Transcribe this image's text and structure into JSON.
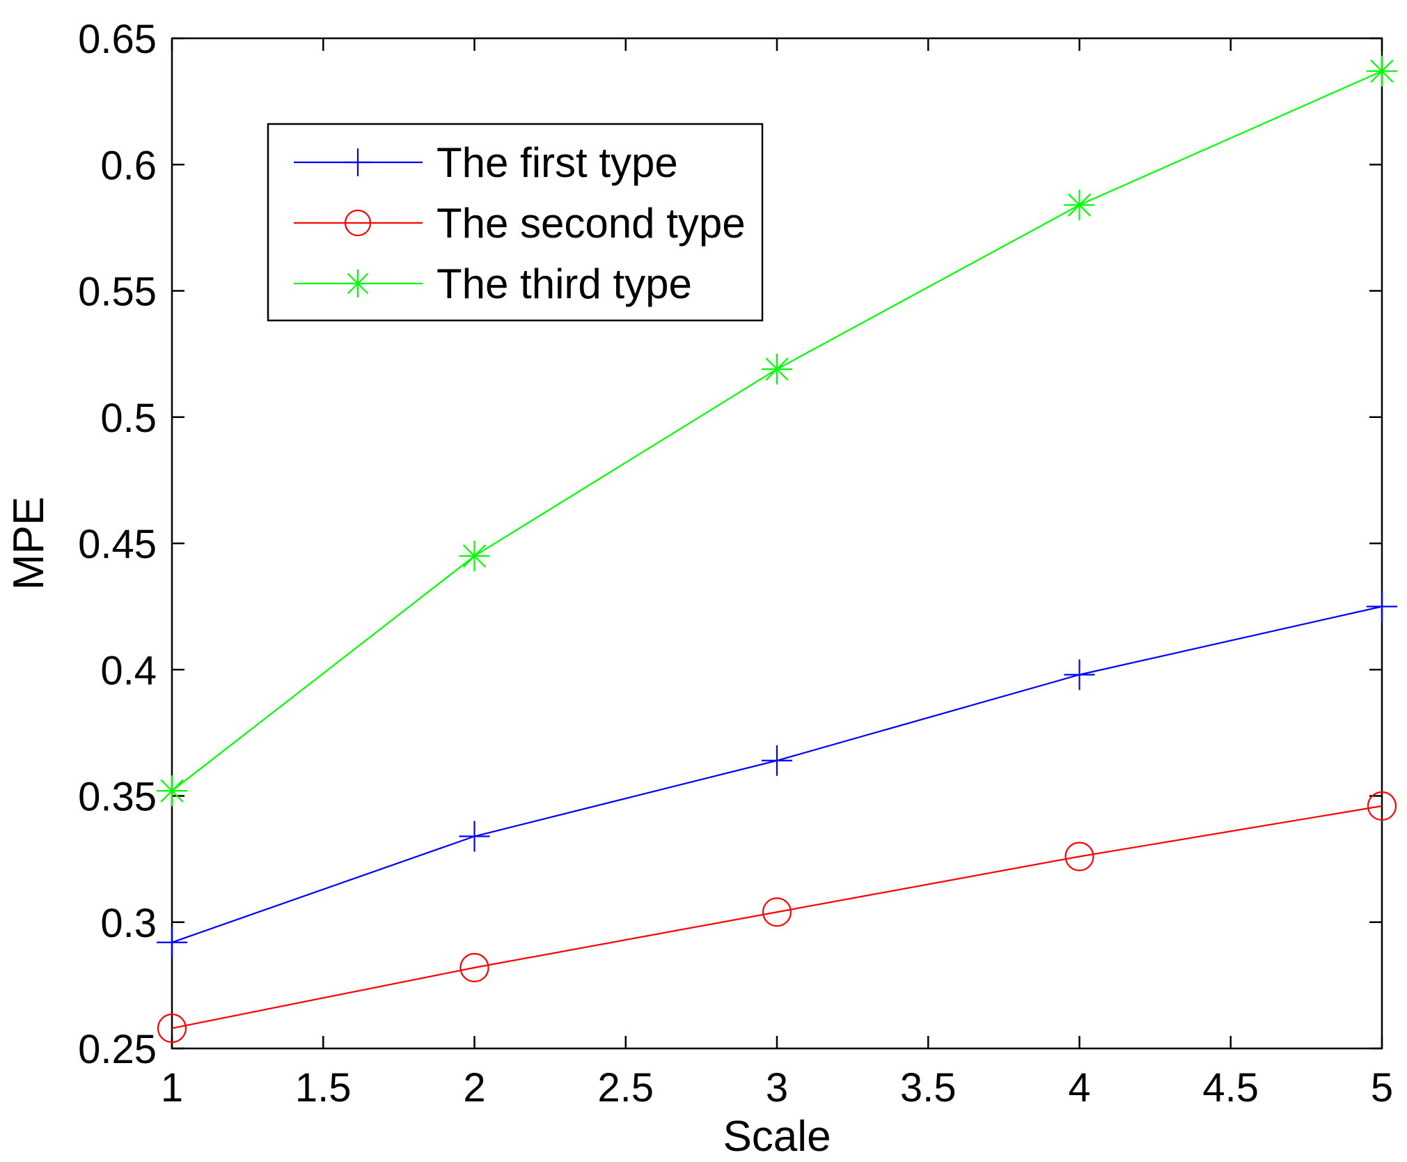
{
  "chart_data": {
    "type": "line",
    "title": "",
    "xlabel": "Scale",
    "ylabel": "MPE",
    "xlim": [
      1,
      5
    ],
    "ylim": [
      0.25,
      0.65
    ],
    "xticks": [
      1,
      1.5,
      2,
      2.5,
      3,
      3.5,
      4,
      4.5,
      5
    ],
    "xtick_labels": [
      "1",
      "1.5",
      "2",
      "2.5",
      "3",
      "3.5",
      "4",
      "4.5",
      "5"
    ],
    "yticks": [
      0.25,
      0.3,
      0.35,
      0.4,
      0.45,
      0.5,
      0.55,
      0.6,
      0.65
    ],
    "ytick_labels": [
      "0.25",
      "0.3",
      "0.35",
      "0.4",
      "0.45",
      "0.5",
      "0.55",
      "0.6",
      "0.65"
    ],
    "grid": false,
    "legend_position": "top-left",
    "x": [
      1,
      2,
      3,
      4,
      5
    ],
    "series": [
      {
        "name": "The first type",
        "values": [
          0.292,
          0.334,
          0.364,
          0.398,
          0.425
        ],
        "color": "#0000ff",
        "marker": "plus"
      },
      {
        "name": "The second type",
        "values": [
          0.258,
          0.282,
          0.304,
          0.326,
          0.346
        ],
        "color": "#ff0000",
        "marker": "circle"
      },
      {
        "name": "The third type",
        "values": [
          0.352,
          0.445,
          0.519,
          0.584,
          0.637
        ],
        "color": "#00ff00",
        "marker": "asterisk"
      }
    ]
  }
}
